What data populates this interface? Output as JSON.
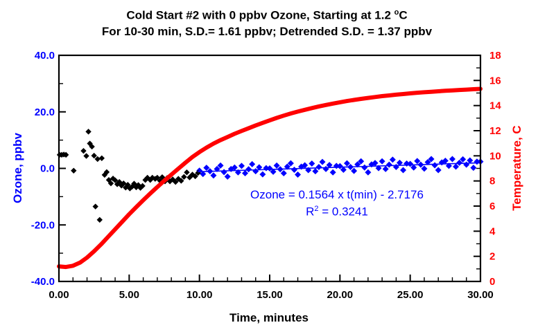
{
  "title": {
    "line1_pre": "Cold Start #2 with 0 ppbv Ozone, Starting at 1.2 ",
    "line1_sup": "o",
    "line1_post": "C",
    "line2": "For 10-30 min, S.D.= 1.61 ppbv; Detrended  S.D. = 1.37 ppbv"
  },
  "annotation": {
    "line1": "Ozone = 0.1564 x t(min) - 2.7176",
    "line2_pre": "R",
    "line2_sup": "2",
    "line2_post": " = 0.3241"
  },
  "colors": {
    "ozone_blue": "#0000ff",
    "temperature_red": "#ff0000",
    "black": "#000000",
    "background": "#ffffff"
  },
  "chart_data": {
    "type": "scatter",
    "title": "Cold Start #2 with 0 ppbv Ozone, Starting at 1.2 C; For 10-30 min, S.D.= 1.61 ppbv; Detrended S.D. = 1.37 ppbv",
    "grid": false,
    "legend": "none",
    "x_axis": {
      "label": "Time, minutes",
      "min": 0,
      "max": 30,
      "majors": [
        0,
        5,
        10,
        15,
        20,
        25,
        30
      ],
      "tick_labels": [
        "0.00",
        "5.00",
        "10.00",
        "15.00",
        "20.00",
        "25.00",
        "30.00"
      ],
      "minor_step": 1
    },
    "y_left": {
      "label": "Ozone, ppbv",
      "min": -40,
      "max": 40,
      "majors": [
        40,
        20,
        0,
        -20,
        -40
      ],
      "tick_labels": [
        "40.0",
        "20.0",
        "0.0",
        "-20.0",
        "-40.0"
      ],
      "minors": [
        30,
        10,
        -10,
        -30
      ]
    },
    "y_right": {
      "label": "Temperature, C",
      "min": 0,
      "max": 18,
      "majors": [
        18,
        16,
        14,
        12,
        10,
        8,
        6,
        4,
        2,
        0
      ],
      "tick_labels": [
        "18",
        "16",
        "14",
        "12",
        "10",
        "8",
        "6",
        "4",
        "2",
        "0"
      ],
      "minors": [
        17,
        15,
        13,
        11,
        9,
        7,
        5,
        3,
        1
      ]
    },
    "fit": {
      "slope": 0.1564,
      "intercept": -2.7176,
      "r2": 0.3241,
      "range_min": 10,
      "range_max": 30
    },
    "series": [
      {
        "name": "ozone-0-10min",
        "axis": "left",
        "marker": "diamond",
        "size": 4.2,
        "color": "#000000",
        "x": [
          0.05,
          0.2,
          0.35,
          0.5,
          1.05,
          1.75,
          1.95,
          2.1,
          2.2,
          2.35,
          2.5,
          2.6,
          2.75,
          2.9,
          3.05,
          3.25,
          3.4,
          3.55,
          3.7,
          3.85,
          4.0,
          4.15,
          4.3,
          4.45,
          4.6,
          4.75,
          4.9,
          5.05,
          5.2,
          5.35,
          5.5,
          5.65,
          5.8,
          5.95,
          6.15,
          6.3,
          6.5,
          6.65,
          6.85,
          7.0,
          7.2,
          7.35,
          7.55,
          7.7,
          7.9,
          8.1,
          8.3,
          8.5,
          8.7,
          8.9,
          9.1,
          9.3,
          9.5,
          9.7,
          9.9
        ],
        "y": [
          4.8,
          4.8,
          4.9,
          4.8,
          -0.8,
          6.2,
          4.4,
          13.0,
          8.8,
          7.7,
          4.5,
          -13.5,
          3.3,
          -18.2,
          3.6,
          -2.3,
          -1.3,
          -4.1,
          -5.3,
          -3.6,
          -4.2,
          -5.6,
          -4.8,
          -6.1,
          -5.3,
          -6.8,
          -5.8,
          -7.1,
          -6.5,
          -5.4,
          -6.7,
          -5.9,
          -6.9,
          -6.2,
          -4.1,
          -3.3,
          -4.1,
          -3.3,
          -3.7,
          -3.3,
          -4.4,
          -3.1,
          -4.6,
          -3.4,
          -4.6,
          -3.9,
          -4.8,
          -3.7,
          -4.4,
          -3.0,
          -1.4,
          -3.2,
          -2.2,
          -2.8,
          -1.6
        ]
      },
      {
        "name": "ozone-10-30min",
        "axis": "left",
        "marker": "diamond",
        "size": 4.5,
        "color": "#0000ff",
        "x": [
          10.0,
          10.25,
          10.5,
          10.75,
          11.0,
          11.25,
          11.5,
          11.75,
          12.0,
          12.25,
          12.5,
          12.75,
          13.0,
          13.25,
          13.5,
          13.75,
          14.0,
          14.25,
          14.5,
          14.75,
          15.0,
          15.25,
          15.5,
          15.75,
          16.0,
          16.25,
          16.5,
          16.75,
          17.0,
          17.25,
          17.5,
          17.75,
          18.0,
          18.25,
          18.5,
          18.75,
          19.0,
          19.25,
          19.5,
          19.75,
          20.0,
          20.25,
          20.5,
          20.75,
          21.0,
          21.25,
          21.5,
          21.75,
          22.0,
          22.25,
          22.5,
          22.75,
          23.0,
          23.25,
          23.5,
          23.75,
          24.0,
          24.25,
          24.5,
          24.75,
          25.0,
          25.25,
          25.5,
          25.75,
          26.0,
          26.25,
          26.5,
          26.75,
          27.0,
          27.25,
          27.5,
          27.75,
          28.0,
          28.25,
          28.5,
          28.75,
          29.0,
          29.25,
          29.5,
          29.75,
          30.0
        ],
        "y": [
          -0.8,
          -2.0,
          0.2,
          -1.0,
          -2.5,
          -0.2,
          1.0,
          -1.3,
          -2.9,
          -0.2,
          0.3,
          -1.4,
          0.9,
          -1.7,
          -0.3,
          1.5,
          -1.0,
          0.4,
          -2.1,
          0.1,
          0.0,
          -1.2,
          1.0,
          -0.3,
          -1.7,
          0.6,
          1.8,
          -0.5,
          -2.2,
          0.6,
          1.1,
          -0.6,
          1.7,
          -1.0,
          0.5,
          2.3,
          -0.2,
          1.2,
          -1.4,
          0.9,
          0.8,
          -0.5,
          1.8,
          0.5,
          -0.9,
          1.4,
          2.5,
          0.3,
          -1.4,
          1.4,
          1.9,
          0.1,
          2.5,
          -0.2,
          1.3,
          3.1,
          0.5,
          2.0,
          -0.6,
          1.7,
          1.6,
          0.3,
          2.6,
          1.3,
          -0.1,
          2.2,
          3.3,
          1.1,
          -0.6,
          2.1,
          2.7,
          0.9,
          3.3,
          0.6,
          2.0,
          3.2,
          1.3,
          2.8,
          0.2,
          2.4,
          2.4
        ]
      },
      {
        "name": "ozone-trend-line",
        "axis": "left",
        "marker": "line",
        "width": 1.6,
        "color": "#0000ff",
        "x": [
          9.9,
          30.0
        ],
        "y": [
          -1.17,
          1.97
        ]
      },
      {
        "name": "temperature",
        "axis": "right",
        "marker": "line",
        "width": 6,
        "color": "#ff0000",
        "x": [
          0,
          0.5,
          1,
          1.5,
          2,
          2.5,
          3,
          3.5,
          4,
          4.5,
          5,
          5.5,
          6,
          6.5,
          7,
          7.5,
          8,
          8.5,
          9,
          9.5,
          10,
          10.5,
          11,
          11.5,
          12,
          12.5,
          13,
          13.5,
          14,
          14.5,
          15,
          15.5,
          16,
          16.5,
          17,
          17.5,
          18,
          18.5,
          19,
          19.5,
          20,
          20.5,
          21,
          21.5,
          22,
          22.5,
          23,
          23.5,
          24,
          24.5,
          25,
          25.5,
          26,
          26.5,
          27,
          27.5,
          28,
          28.5,
          29,
          29.5,
          30
        ],
        "y": [
          1.2,
          1.15,
          1.25,
          1.5,
          1.9,
          2.4,
          2.95,
          3.55,
          4.15,
          4.75,
          5.35,
          5.92,
          6.47,
          7.0,
          7.52,
          8.02,
          8.5,
          8.98,
          9.45,
          9.9,
          10.3,
          10.65,
          10.97,
          11.25,
          11.5,
          11.75,
          11.98,
          12.2,
          12.42,
          12.62,
          12.82,
          13.02,
          13.2,
          13.37,
          13.52,
          13.66,
          13.8,
          13.93,
          14.05,
          14.16,
          14.26,
          14.36,
          14.45,
          14.53,
          14.61,
          14.68,
          14.75,
          14.81,
          14.87,
          14.92,
          14.97,
          15.02,
          15.06,
          15.1,
          15.14,
          15.18,
          15.21,
          15.24,
          15.27,
          15.3,
          15.33
        ]
      }
    ]
  }
}
